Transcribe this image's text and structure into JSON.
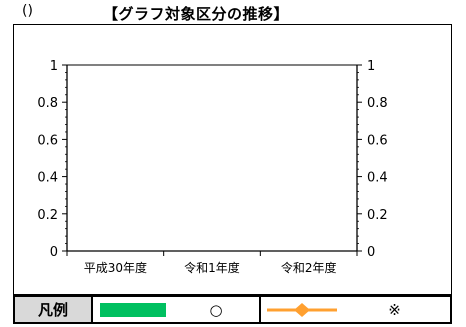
{
  "header": {
    "paren": "()",
    "title": "【グラフ対象区分の推移】"
  },
  "chart_data": {
    "type": "bar",
    "categories": [
      "平成30年度",
      "令和1年度",
      "令和2年度"
    ],
    "series": [
      {
        "values": [
          0,
          0,
          0
        ],
        "color": "#00c060"
      },
      {
        "values": [
          0,
          0,
          0
        ],
        "color": "#ffa030"
      }
    ],
    "y_left": {
      "min": 0,
      "max": 1,
      "ticks": [
        0,
        0.2,
        0.4,
        0.6,
        0.8,
        1
      ]
    },
    "y_right": {
      "min": 0,
      "max": 1,
      "ticks": [
        0,
        0.2,
        0.4,
        0.6,
        0.8,
        1
      ]
    },
    "grid": false
  },
  "legend": {
    "title": "凡例",
    "bar_label": "○",
    "line_label": "※",
    "bar_color": "#00c060",
    "line_color": "#ffa030"
  }
}
